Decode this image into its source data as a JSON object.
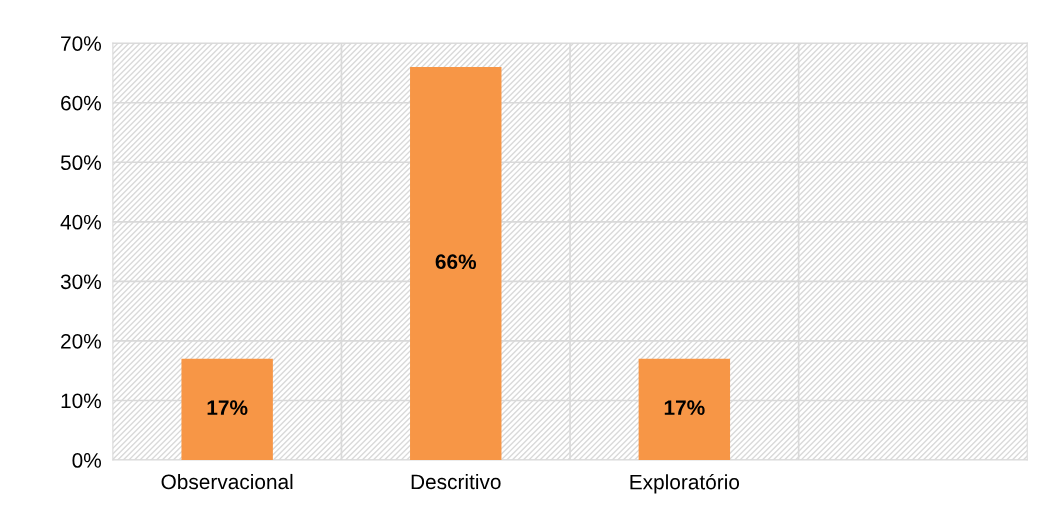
{
  "chart_data": {
    "type": "bar",
    "categories": [
      "Observacional",
      "Descritivo",
      "Exploratório",
      null
    ],
    "values": [
      17,
      66,
      17,
      null
    ],
    "value_labels": [
      "17%",
      "66%",
      "17%",
      null
    ],
    "color": "#f79646",
    "ylim": [
      0,
      70
    ],
    "yticks": [
      {
        "value": 0,
        "label": "0%"
      },
      {
        "value": 10,
        "label": "10%"
      },
      {
        "value": 20,
        "label": "20%"
      },
      {
        "value": 30,
        "label": "30%"
      },
      {
        "value": 40,
        "label": "40%"
      },
      {
        "value": 50,
        "label": "50%"
      },
      {
        "value": 60,
        "label": "60%"
      },
      {
        "value": 70,
        "label": "70%"
      }
    ],
    "grid": true,
    "legend": false
  }
}
